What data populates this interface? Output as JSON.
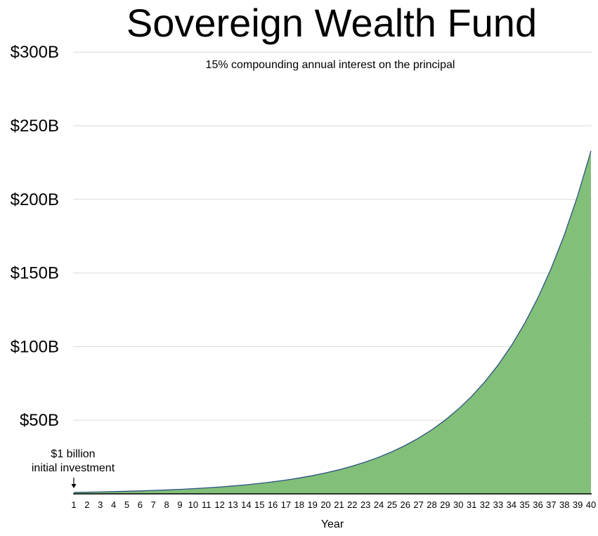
{
  "chart_data": {
    "type": "area",
    "title": "Sovereign Wealth Fund",
    "subtitle": "15% compounding annual interest on the principal",
    "xlabel": "Year",
    "ylabel": "",
    "x": [
      1,
      2,
      3,
      4,
      5,
      6,
      7,
      8,
      9,
      10,
      11,
      12,
      13,
      14,
      15,
      16,
      17,
      18,
      19,
      20,
      21,
      22,
      23,
      24,
      25,
      26,
      27,
      28,
      29,
      30,
      31,
      32,
      33,
      34,
      35,
      36,
      37,
      38,
      39,
      40
    ],
    "series": [
      {
        "values": [
          1.0,
          1.15,
          1.32,
          1.52,
          1.75,
          2.01,
          2.31,
          2.66,
          3.06,
          3.52,
          4.05,
          4.65,
          5.35,
          6.15,
          7.08,
          8.14,
          9.36,
          10.76,
          12.38,
          14.23,
          16.37,
          18.82,
          21.64,
          24.89,
          28.63,
          32.92,
          37.86,
          43.54,
          50.07,
          57.58,
          66.21,
          76.14,
          87.57,
          100.7,
          115.8,
          133.18,
          153.15,
          176.12,
          202.54,
          232.92
        ]
      }
    ],
    "y_ticks": [
      {
        "value": 50,
        "label": "$50B"
      },
      {
        "value": 100,
        "label": "$100B"
      },
      {
        "value": 150,
        "label": "$150B"
      },
      {
        "value": 200,
        "label": "$200B"
      },
      {
        "value": 250,
        "label": "$250B"
      },
      {
        "value": 300,
        "label": "$300B"
      }
    ],
    "ylim": [
      0,
      300
    ],
    "xlim": [
      1,
      40
    ],
    "grid": true,
    "legend": "none",
    "annotation": {
      "lines": [
        "$1 billion",
        "initial investment"
      ],
      "x": 1,
      "y": 1.0
    },
    "colors": {
      "fill": "#82bf78",
      "line": "#2c5282",
      "grid": "#d9d9d9",
      "axis": "#000000"
    }
  }
}
